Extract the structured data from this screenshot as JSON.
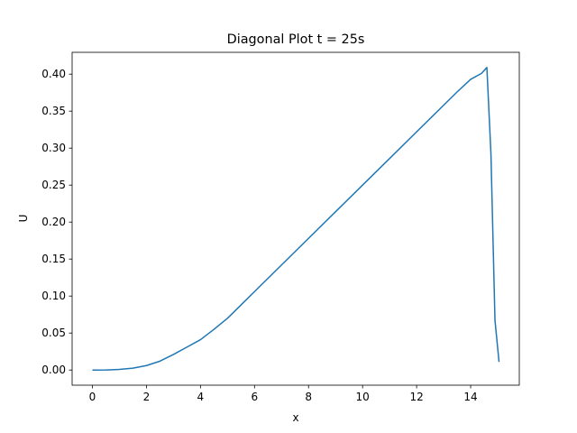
{
  "chart_data": {
    "type": "line",
    "title": "Diagonal Plot t = 25s",
    "x_label": "x",
    "y_label": "U",
    "x": [
      0,
      0.5,
      1,
      1.5,
      2,
      2.5,
      3,
      3.5,
      4,
      4.5,
      5,
      5.5,
      6,
      7,
      8,
      9,
      10,
      11,
      12,
      13,
      13.5,
      14,
      14.4,
      14.6,
      14.75,
      14.9,
      15.05
    ],
    "series": [
      {
        "name": "U",
        "color": "#1f77b4",
        "values": [
          0,
          0.0001,
          0.0008,
          0.0025,
          0.006,
          0.012,
          0.021,
          0.031,
          0.041,
          0.055,
          0.07,
          0.088,
          0.106,
          0.142,
          0.178,
          0.214,
          0.25,
          0.286,
          0.322,
          0.358,
          0.376,
          0.393,
          0.401,
          0.409,
          0.293,
          0.067,
          0.011
        ]
      }
    ],
    "xlim": [
      -0.75,
      15.8
    ],
    "ylim": [
      -0.0205,
      0.4295
    ],
    "xticks": [
      0,
      2,
      4,
      6,
      8,
      10,
      12,
      14
    ],
    "yticks": [
      {
        "value": 0,
        "label": "0.00"
      },
      {
        "value": 0.05,
        "label": "0.05"
      },
      {
        "value": 0.1,
        "label": "0.10"
      },
      {
        "value": 0.15,
        "label": "0.15"
      },
      {
        "value": 0.2,
        "label": "0.20"
      },
      {
        "value": 0.25,
        "label": "0.25"
      },
      {
        "value": 0.3,
        "label": "0.30"
      },
      {
        "value": 0.35,
        "label": "0.35"
      },
      {
        "value": 0.4,
        "label": "0.40"
      }
    ]
  }
}
